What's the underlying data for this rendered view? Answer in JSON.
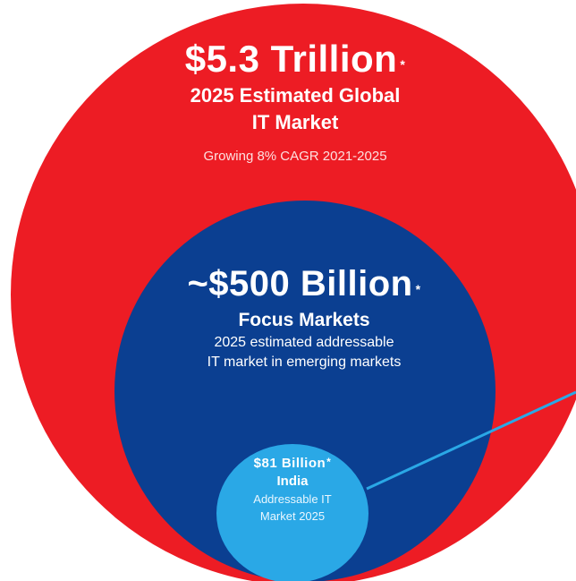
{
  "colors": {
    "outer_circle": "#ed1c24",
    "middle_circle": "#0b3f91",
    "inner_circle": "#2aa8e6",
    "connector_line": "#2aa8e6",
    "text": "#ffffff"
  },
  "outer": {
    "value": "$5.3 Trillion",
    "marker": "*",
    "title_line1": "2025 Estimated Global",
    "title_line2": "IT Market",
    "description": "Growing 8% CAGR 2021-2025"
  },
  "middle": {
    "value": "~$500 Billion",
    "marker": "*",
    "title": "Focus Markets",
    "description_line1": "2025 estimated addressable",
    "description_line2": "IT market in emerging markets"
  },
  "inner": {
    "value": "$81 Billion",
    "marker": "*",
    "title": "India",
    "description_line1": "Addressable IT",
    "description_line2": "Market 2025"
  }
}
